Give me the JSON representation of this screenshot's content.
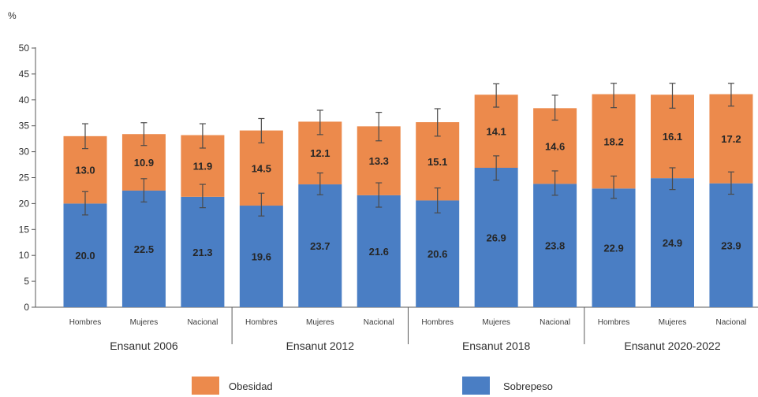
{
  "chart_data": {
    "type": "bar",
    "stacked": true,
    "ylabel": "%",
    "ylim": [
      0,
      50
    ],
    "yticks": [
      0,
      5,
      10,
      15,
      20,
      25,
      30,
      35,
      40,
      45,
      50
    ],
    "grid": false,
    "legend_position": "bottom",
    "categories": [
      "Hombres",
      "Mujeres",
      "Nacional",
      "Hombres",
      "Mujeres",
      "Nacional",
      "Hombres",
      "Mujeres",
      "Nacional",
      "Hombres",
      "Mujeres",
      "Nacional"
    ],
    "groups": [
      {
        "label": "Ensanut 2006",
        "span": [
          0,
          2
        ]
      },
      {
        "label": "Ensanut 2012",
        "span": [
          3,
          5
        ]
      },
      {
        "label": "Ensanut 2018",
        "span": [
          6,
          8
        ]
      },
      {
        "label": "Ensanut 2020-2022",
        "span": [
          9,
          11
        ]
      }
    ],
    "series": [
      {
        "name": "Sobrepeso",
        "color": "#4a7ec4",
        "values": [
          20.0,
          22.5,
          21.3,
          19.6,
          23.7,
          21.6,
          20.6,
          26.9,
          23.8,
          22.9,
          24.9,
          23.9
        ],
        "labels": [
          "20.0",
          "22.5",
          "21.3",
          "19.6",
          "23.7",
          "21.6",
          "20.6",
          "26.9",
          "23.8",
          "22.9",
          "24.9",
          "23.9"
        ]
      },
      {
        "name": "Obesidad",
        "color": "#ec8a4c",
        "values": [
          13.0,
          10.9,
          11.9,
          14.5,
          12.1,
          13.3,
          15.1,
          14.1,
          14.6,
          18.2,
          16.1,
          17.2
        ],
        "labels": [
          "13.0",
          "10.9",
          "11.9",
          "14.5",
          "12.1",
          "13.3",
          "15.1",
          "14.1",
          "14.6",
          "18.2",
          "16.1",
          "17.2"
        ]
      }
    ],
    "error_bars": {
      "color": "#4a4a4a",
      "sobrepeso_low": [
        17.8,
        20.3,
        19.2,
        17.6,
        21.7,
        19.3,
        18.2,
        24.5,
        21.6,
        21.0,
        22.7,
        21.8
      ],
      "sobrepeso_high": [
        22.3,
        24.8,
        23.7,
        22.0,
        25.9,
        24.0,
        23.0,
        29.2,
        26.3,
        25.3,
        26.9,
        26.1
      ],
      "total_low": [
        30.6,
        31.2,
        30.7,
        31.7,
        33.3,
        32.1,
        33.0,
        38.6,
        36.1,
        38.5,
        38.4,
        38.8
      ],
      "total_high": [
        35.4,
        35.6,
        35.4,
        36.4,
        38.0,
        37.6,
        38.3,
        43.1,
        40.9,
        43.2,
        43.2,
        43.2
      ]
    },
    "legend": [
      {
        "label": "Obesidad",
        "color": "#ec8a4c"
      },
      {
        "label": "Sobrepeso",
        "color": "#4a7ec4"
      }
    ]
  }
}
